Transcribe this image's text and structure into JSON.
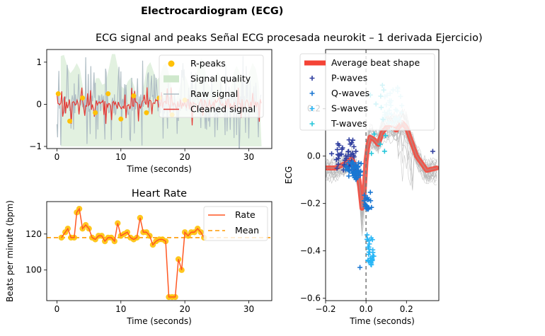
{
  "figure": {
    "suptitle": "Electrocardiogram (ECG)",
    "subtitle_ecg": "ECG signal and peaks Señal ECG procesada neurokit – 1 derivada Ejercicio)",
    "hr_title": "Heart Rate"
  },
  "chart_data": [
    {
      "type": "line",
      "panel": "ecg-signal",
      "xlabel": "Time (seconds)",
      "ylabel": "",
      "xlim": [
        -1.6,
        33.6
      ],
      "ylim": [
        -1.05,
        1.3
      ],
      "xticks": [
        0,
        10,
        20,
        30
      ],
      "yticks": [
        -1,
        0,
        1
      ],
      "legend": [
        "R-peaks",
        "Signal quality",
        "Raw signal",
        "Cleaned signal"
      ],
      "legend_position": "top-right",
      "colors": {
        "rpeaks": "#ffc107",
        "quality": "#cfe8cc",
        "raw": "#b0bec5",
        "clean": "#e53935"
      },
      "signal_range": [
        0.0,
        32.0
      ],
      "quality_range": [
        0.6,
        32.0
      ],
      "series": [
        {
          "name": "R-peaks",
          "x": [
            0.2,
            2.0,
            4.0,
            6.0,
            8.0,
            10.0,
            12.0,
            14.0,
            16.0,
            18.0,
            20.0
          ],
          "y": [
            0.25,
            -0.4,
            0.15,
            -0.2,
            0.25,
            -0.35,
            0.2,
            -0.2,
            0.15,
            -0.25,
            0.1
          ]
        }
      ]
    },
    {
      "type": "line",
      "panel": "heart-rate",
      "title": "Heart Rate",
      "xlabel": "Time (seconds)",
      "ylabel": "Beats per minute (bpm)",
      "xlim": [
        -1.6,
        33.6
      ],
      "ylim": [
        83,
        138
      ],
      "xticks": [
        0,
        10,
        20,
        30
      ],
      "yticks": [
        100,
        120
      ],
      "legend": [
        "Rate",
        "Mean"
      ],
      "legend_position": "top-right",
      "colors": {
        "rate": "#ff5722",
        "mean": "#ff9800",
        "markers": "#ffc107"
      },
      "mean": 118,
      "series": [
        {
          "name": "Rate",
          "x": [
            0.7,
            1.3,
            1.7,
            2.2,
            2.7,
            3.1,
            3.5,
            4.0,
            4.5,
            5.0,
            5.5,
            6.0,
            6.5,
            7.0,
            7.5,
            8.0,
            8.5,
            9.0,
            9.5,
            10.0,
            10.5,
            11.0,
            11.5,
            12.0,
            12.5,
            13.0,
            13.5,
            14.0,
            14.5,
            15.0,
            15.5,
            16.0,
            16.5,
            17.0,
            17.5,
            18.0,
            18.5,
            19.0,
            19.5,
            20.0,
            20.5,
            21.0,
            21.5,
            22.0,
            22.5,
            23.0
          ],
          "y": [
            118,
            121,
            123,
            118,
            118,
            132,
            134,
            123,
            125,
            123,
            118,
            117,
            119,
            119,
            116,
            118,
            118,
            116,
            126,
            119,
            120,
            121,
            118,
            117,
            118,
            129,
            121,
            121,
            119,
            114,
            116,
            117,
            117,
            116,
            85,
            85,
            85,
            106,
            100,
            121,
            119,
            121,
            121,
            123,
            121,
            118
          ]
        }
      ]
    },
    {
      "type": "line",
      "panel": "beat-shape",
      "xlabel": "Time (seconds)",
      "ylabel": "ECG",
      "xlim": [
        -0.2,
        0.36
      ],
      "ylim": [
        -0.61,
        0.45
      ],
      "xticks": [
        -0.2,
        0.0,
        0.2
      ],
      "yticks": [
        -0.6,
        -0.4,
        -0.2,
        0.0,
        0.2
      ],
      "legend": [
        "Average beat shape",
        "P-waves",
        "Q-waves",
        "S-waves",
        "T-waves"
      ],
      "legend_position": "top-left",
      "colors": {
        "avg": "#f44336",
        "avg_overlay": "#9e9e9e",
        "p": "#303f9f",
        "q": "#1976d2",
        "s": "#29b6f6",
        "t": "#b2ebf2",
        "tw": "#26c6da"
      },
      "series": [
        {
          "name": "Average beat shape",
          "x": [
            -0.2,
            -0.15,
            -0.1,
            -0.07,
            -0.05,
            -0.035,
            -0.02,
            -0.01,
            0.0,
            0.01,
            0.02,
            0.04,
            0.06,
            0.08,
            0.1,
            0.12,
            0.15,
            0.18,
            0.2,
            0.25,
            0.3,
            0.35
          ],
          "y": [
            -0.05,
            -0.05,
            -0.03,
            -0.01,
            -0.05,
            -0.1,
            -0.22,
            -0.16,
            -0.02,
            0.05,
            0.08,
            0.07,
            0.05,
            0.1,
            0.12,
            0.12,
            0.11,
            0.14,
            0.12,
            0.0,
            -0.06,
            -0.05
          ]
        }
      ]
    }
  ]
}
